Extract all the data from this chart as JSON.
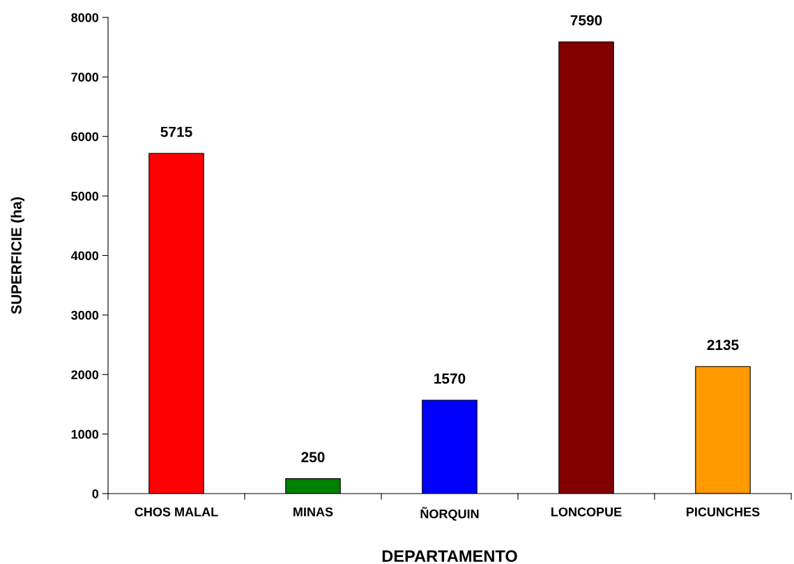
{
  "chart_data": {
    "type": "bar",
    "xlabel": "DEPARTAMENTO",
    "ylabel": "SUPERFICIE (ha)",
    "categories": [
      "CHOS MALAL",
      "MINAS",
      "ÑORQUIN",
      "LONCOPUE",
      "PICUNCHES"
    ],
    "values": [
      5715,
      250,
      1570,
      7590,
      2135
    ],
    "colors": [
      "#ff0000",
      "#008000",
      "#0000ff",
      "#800000",
      "#ff9900"
    ],
    "ylim": [
      0,
      8000
    ],
    "yticks": [
      0,
      1000,
      2000,
      3000,
      4000,
      5000,
      6000,
      7000,
      8000
    ],
    "grid": false,
    "legend": false,
    "data_labels": true
  }
}
